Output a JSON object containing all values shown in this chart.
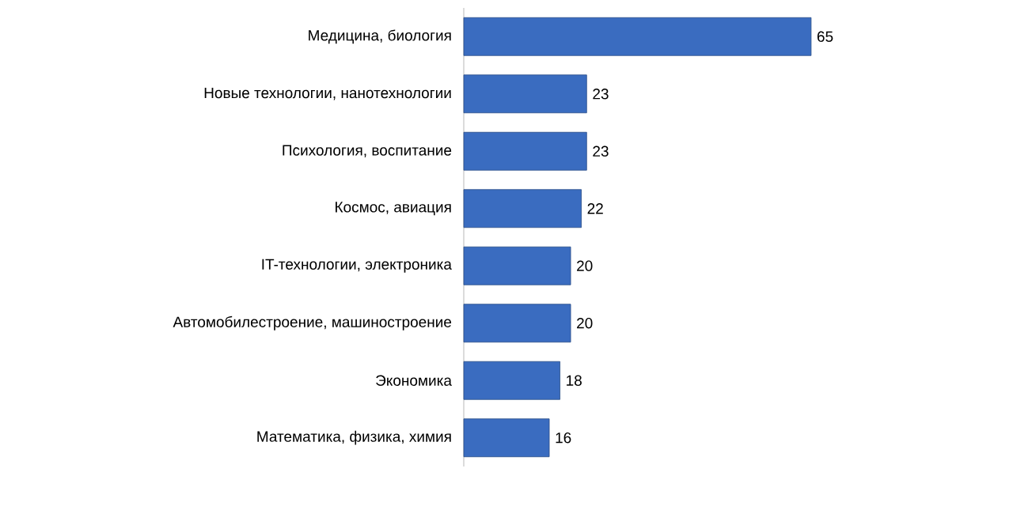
{
  "chart_data": {
    "type": "bar",
    "orientation": "horizontal",
    "data_labels": true,
    "color": "#3a6cc0",
    "categories": [
      "Медицина, биология",
      "Новые технологии, нанотехнологии",
      "Психология, воспитание",
      "Космос, авиация",
      "IT-технологии, электроника",
      "Автомобилестроение, машиностроение",
      "Экономика",
      "Математика, физика, химия"
    ],
    "values": [
      65,
      23,
      23,
      22,
      20,
      20,
      18,
      16
    ]
  }
}
